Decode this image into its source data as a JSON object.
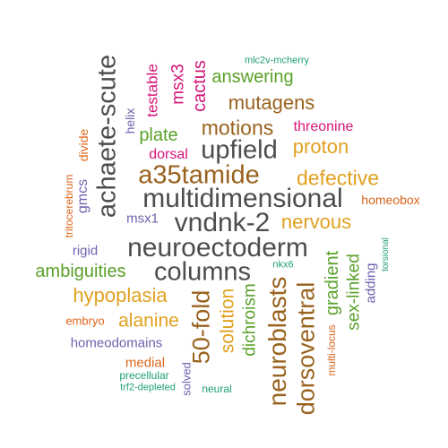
{
  "palette": {
    "brown": "#99621e",
    "dark": "#4d4d4d",
    "gold": "#e0a120",
    "green": "#5aa12a",
    "magenta": "#d6147a",
    "purple": "#6b63ad",
    "teal": "#1f9e78",
    "orange": "#d9651a"
  },
  "words": [
    {
      "text": "neuroectoderm",
      "color": "dark"
    },
    {
      "text": "multidimensional",
      "color": "dark"
    },
    {
      "text": "vndnk-2",
      "color": "dark"
    },
    {
      "text": "columns",
      "color": "dark"
    },
    {
      "text": "upfield",
      "color": "dark"
    },
    {
      "text": "achaete-scute",
      "color": "dark"
    },
    {
      "text": "a35tamide",
      "color": "brown"
    },
    {
      "text": "neuroblasts",
      "color": "brown"
    },
    {
      "text": "dorsoventral",
      "color": "brown"
    },
    {
      "text": "50-fold",
      "color": "brown"
    },
    {
      "text": "motions",
      "color": "brown"
    },
    {
      "text": "mutagens",
      "color": "brown"
    },
    {
      "text": "defective",
      "color": "gold"
    },
    {
      "text": "proton",
      "color": "gold"
    },
    {
      "text": "nervous",
      "color": "gold"
    },
    {
      "text": "hypoplasia",
      "color": "gold"
    },
    {
      "text": "alanine",
      "color": "gold"
    },
    {
      "text": "solution",
      "color": "gold"
    },
    {
      "text": "answering",
      "color": "green"
    },
    {
      "text": "plate",
      "color": "green"
    },
    {
      "text": "ambiguities",
      "color": "green"
    },
    {
      "text": "gradient",
      "color": "green"
    },
    {
      "text": "sex-linked",
      "color": "green"
    },
    {
      "text": "dichroism",
      "color": "green"
    },
    {
      "text": "cactus",
      "color": "magenta"
    },
    {
      "text": "msx3",
      "color": "magenta"
    },
    {
      "text": "testable",
      "color": "magenta"
    },
    {
      "text": "threonine",
      "color": "magenta"
    },
    {
      "text": "dorsal",
      "color": "magenta"
    },
    {
      "text": "medial",
      "color": "orange"
    },
    {
      "text": "homeobox",
      "color": "orange"
    },
    {
      "text": "divide",
      "color": "orange"
    },
    {
      "text": "embryo",
      "color": "orange"
    },
    {
      "text": "multi-locus",
      "color": "orange"
    },
    {
      "text": "tritocerebrum",
      "color": "orange"
    },
    {
      "text": "gmcs",
      "color": "purple"
    },
    {
      "text": "msx1",
      "color": "purple"
    },
    {
      "text": "helix",
      "color": "purple"
    },
    {
      "text": "rigid",
      "color": "purple"
    },
    {
      "text": "homeodomains",
      "color": "purple"
    },
    {
      "text": "adding",
      "color": "purple"
    },
    {
      "text": "solved",
      "color": "purple"
    },
    {
      "text": "mlc2v-mcherry",
      "color": "teal"
    },
    {
      "text": "nkx6",
      "color": "teal"
    },
    {
      "text": "torsional",
      "color": "teal"
    },
    {
      "text": "precellular",
      "color": "teal"
    },
    {
      "text": "trf2-depleted",
      "color": "teal"
    },
    {
      "text": "neural",
      "color": "teal"
    }
  ]
}
